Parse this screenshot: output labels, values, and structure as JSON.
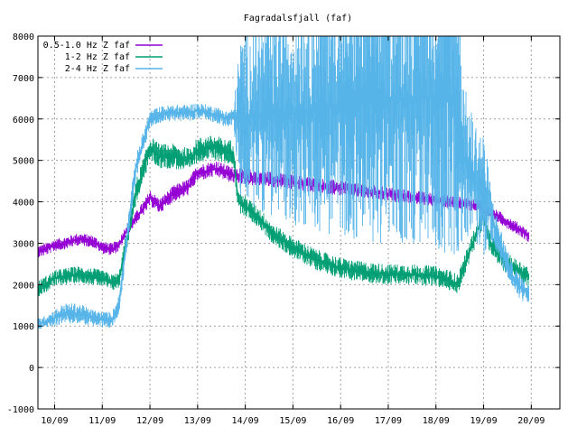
{
  "chart_data": {
    "type": "line",
    "title": "Fagradalsfjall (faf)",
    "xlabel": "",
    "ylabel": "",
    "grid": true,
    "legend_position": "top-left",
    "ylim": [
      -1000,
      8000
    ],
    "yticks": [
      -1000,
      0,
      1000,
      2000,
      3000,
      4000,
      5000,
      6000,
      7000,
      8000
    ],
    "x_unit": "day index (10/09 = 0)",
    "xlim": [
      -0.35,
      10.6
    ],
    "xticks": [
      {
        "x": 0,
        "label": "10/09"
      },
      {
        "x": 1,
        "label": "11/09"
      },
      {
        "x": 2,
        "label": "12/09"
      },
      {
        "x": 3,
        "label": "13/09"
      },
      {
        "x": 4,
        "label": "14/09"
      },
      {
        "x": 5,
        "label": "15/09"
      },
      {
        "x": 6,
        "label": "16/09"
      },
      {
        "x": 7,
        "label": "17/09"
      },
      {
        "x": 8,
        "label": "18/09"
      },
      {
        "x": 9,
        "label": "19/09"
      },
      {
        "x": 10,
        "label": "20/09"
      }
    ],
    "series": [
      {
        "name": "0.5-1.0 Hz Z faf",
        "color": "#9400d3",
        "x": [
          -0.35,
          -0.2,
          0,
          0.2,
          0.5,
          0.8,
          1.0,
          1.2,
          1.35,
          1.5,
          1.7,
          1.9,
          2.0,
          2.2,
          2.5,
          2.8,
          3.0,
          3.2,
          3.4,
          3.6,
          3.75,
          9.0,
          9.1,
          9.3,
          9.5,
          9.8,
          9.95
        ],
        "y": [
          2800,
          2850,
          2950,
          3000,
          3100,
          3050,
          2900,
          2850,
          2950,
          3300,
          3600,
          3900,
          4100,
          3900,
          4200,
          4350,
          4700,
          4750,
          4800,
          4700,
          4650,
          3900,
          3700,
          3650,
          3500,
          3300,
          3150
        ],
        "band": [
          150,
          150,
          150,
          150,
          150,
          150,
          150,
          150,
          150,
          150,
          150,
          180,
          200,
          180,
          200,
          200,
          200,
          200,
          200,
          200,
          200,
          150,
          150,
          150,
          150,
          150,
          150
        ]
      },
      {
        "name": "1-2 Hz Z faf",
        "color": "#009e73",
        "x": [
          -0.35,
          -0.2,
          0,
          0.2,
          0.5,
          0.8,
          1.0,
          1.2,
          1.35,
          1.5,
          1.7,
          1.9,
          2.0,
          2.2,
          2.5,
          2.8,
          3.0,
          3.2,
          3.4,
          3.6,
          3.75,
          3.85,
          4.0,
          4.3,
          4.6,
          5.0,
          5.5,
          6.0,
          6.5,
          7.0,
          7.5,
          8.0,
          8.3,
          8.45,
          9.0,
          9.1,
          9.3,
          9.5,
          9.8,
          9.95
        ],
        "y": [
          1900,
          2000,
          2150,
          2200,
          2250,
          2200,
          2150,
          2050,
          2100,
          3000,
          4200,
          4900,
          5300,
          5100,
          5100,
          5000,
          5250,
          5300,
          5300,
          5200,
          5200,
          4000,
          3900,
          3600,
          3200,
          2900,
          2600,
          2400,
          2300,
          2250,
          2250,
          2200,
          2100,
          2000,
          3700,
          3100,
          2700,
          2500,
          2300,
          2200
        ],
        "band": [
          200,
          200,
          200,
          200,
          200,
          200,
          200,
          200,
          200,
          250,
          300,
          300,
          300,
          300,
          300,
          300,
          300,
          300,
          300,
          300,
          300,
          250,
          250,
          250,
          250,
          250,
          250,
          250,
          250,
          250,
          250,
          250,
          250,
          250,
          250,
          250,
          250,
          250,
          250,
          250
        ]
      },
      {
        "name": "2-4 Hz Z faf",
        "color": "#56b4e9",
        "x": [
          -0.35,
          -0.2,
          0,
          0.2,
          0.5,
          0.8,
          1.0,
          1.2,
          1.35,
          1.5,
          1.7,
          1.9,
          2.0,
          2.2,
          2.5,
          2.8,
          3.0,
          3.2,
          3.4,
          3.6,
          3.75,
          3.9,
          4.2,
          4.6,
          5.0,
          5.5,
          6.0,
          6.5,
          7.0,
          7.5,
          8.0,
          8.3,
          8.45,
          8.6,
          8.8,
          9.0,
          9.2,
          9.4,
          9.6,
          9.8,
          9.95
        ],
        "y": [
          1050,
          1100,
          1200,
          1300,
          1300,
          1200,
          1150,
          1150,
          1500,
          3000,
          4800,
          5600,
          6000,
          6100,
          6150,
          6150,
          6200,
          6150,
          6100,
          6000,
          6050,
          6050,
          6050,
          6100,
          6150,
          6250,
          6350,
          6400,
          6450,
          6500,
          6550,
          6500,
          6450,
          5000,
          4500,
          4200,
          3500,
          2800,
          2200,
          1900,
          1800
        ],
        "band": [
          150,
          150,
          200,
          250,
          250,
          200,
          200,
          200,
          250,
          300,
          300,
          250,
          200,
          200,
          200,
          200,
          200,
          200,
          200,
          200,
          200,
          2000,
          2200,
          2500,
          2700,
          3000,
          3200,
          3400,
          3500,
          3600,
          3700,
          3800,
          3800,
          1800,
          1500,
          1500,
          500,
          400,
          300,
          300,
          250
        ]
      }
    ]
  }
}
